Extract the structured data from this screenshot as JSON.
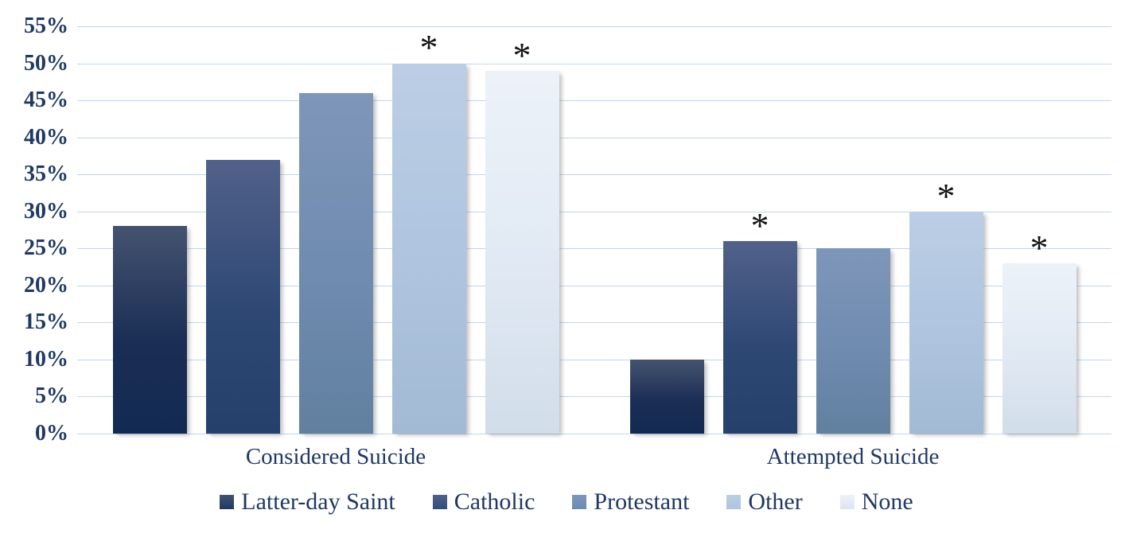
{
  "chart_data": {
    "type": "bar",
    "title": "",
    "xlabel": "",
    "ylabel": "",
    "categories": [
      "Considered Suicide",
      "Attempted Suicide"
    ],
    "series": [
      {
        "name": "Latter-day Saint",
        "values": [
          28,
          10
        ],
        "significant": [
          false,
          false
        ],
        "gradient_top": "#44536F",
        "gradient_mid": "#1B2E55",
        "gradient_bottom": "#122A52",
        "legend_color": "#1F3864"
      },
      {
        "name": "Catholic",
        "values": [
          37,
          26
        ],
        "significant": [
          false,
          true
        ],
        "gradient_top": "#51618A",
        "gradient_mid": "#2E4874",
        "gradient_bottom": "#26406C",
        "legend_color": "#2F4F7D"
      },
      {
        "name": "Protestant",
        "values": [
          46,
          25
        ],
        "significant": [
          false,
          false
        ],
        "gradient_top": "#7E96B9",
        "gradient_mid": "#6F8BB0",
        "gradient_bottom": "#61809F",
        "legend_color": "#6C8CB3"
      },
      {
        "name": "Other",
        "values": [
          50,
          30
        ],
        "significant": [
          true,
          true
        ],
        "gradient_top": "#BCCEE5",
        "gradient_mid": "#AEC4DF",
        "gradient_bottom": "#A2BAD4",
        "legend_color": "#AEC4DE"
      },
      {
        "name": "None",
        "values": [
          49,
          23
        ],
        "significant": [
          true,
          true
        ],
        "gradient_top": "#EDF2F9",
        "gradient_mid": "#E0E9F3",
        "gradient_bottom": "#D2DDEA",
        "legend_color": "#DCE5F0"
      }
    ],
    "ylim": [
      0,
      55
    ],
    "ytick_step": 5,
    "yticks": [
      "0%",
      "5%",
      "10%",
      "15%",
      "20%",
      "25%",
      "30%",
      "35%",
      "40%",
      "45%",
      "50%",
      "55%"
    ],
    "significance_marker": "*",
    "grid": "horizontal",
    "gridline_color": "#BDD7EE",
    "axis_text_color": "#1F3864",
    "legend_position": "bottom"
  }
}
